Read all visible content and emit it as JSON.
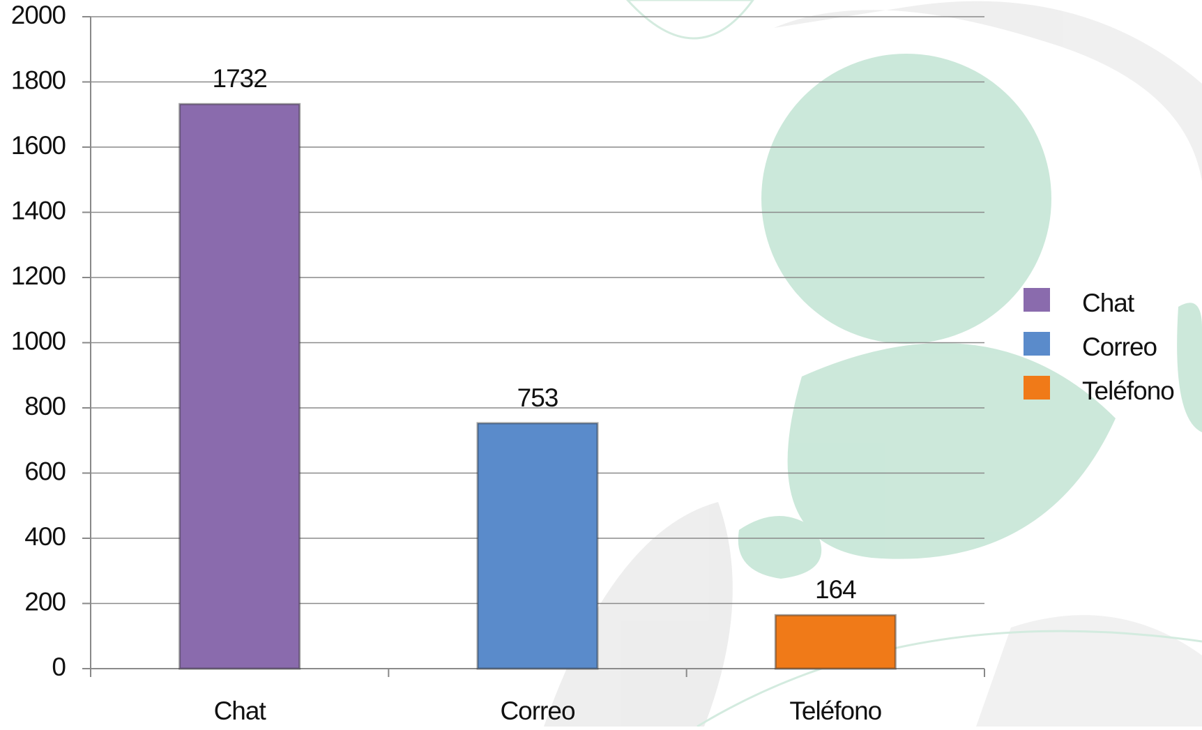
{
  "chart_data": {
    "type": "bar",
    "categories": [
      "Chat",
      "Correo",
      "Teléfono"
    ],
    "values": [
      1732,
      753,
      164
    ],
    "colors": [
      "#8a6bad",
      "#5a8bcb",
      "#f07a18"
    ],
    "ylim": [
      0,
      2000
    ],
    "yticks": [
      0,
      200,
      400,
      600,
      800,
      1000,
      1200,
      1400,
      1600,
      1800,
      2000
    ],
    "grid": true,
    "legend": "right"
  }
}
